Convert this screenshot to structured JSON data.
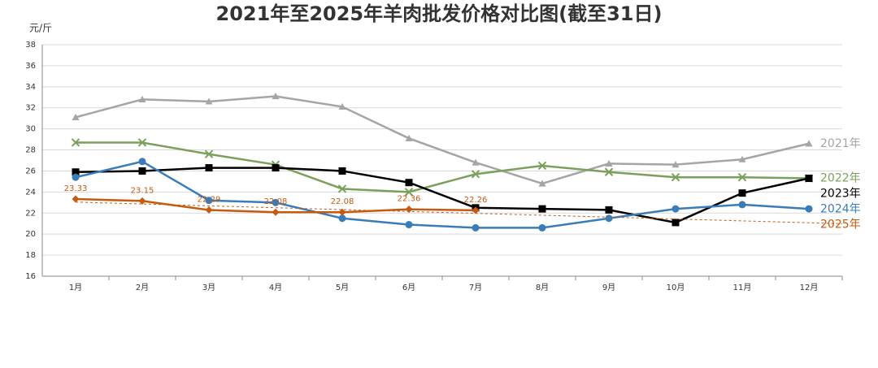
{
  "chart_data": {
    "type": "line",
    "title": "2021年至2025年羊肉批发价格对比图(截至31日)",
    "y_label": "元/斤",
    "categories": [
      "1月",
      "2月",
      "3月",
      "4月",
      "5月",
      "6月",
      "7月",
      "8月",
      "9月",
      "10月",
      "11月",
      "12月"
    ],
    "ylim": [
      16,
      38
    ],
    "yticks": [
      16,
      18,
      20,
      22,
      24,
      26,
      28,
      30,
      32,
      34,
      36,
      38
    ],
    "grid": true,
    "series": [
      {
        "name": "2021年",
        "color": "#a5a5a5",
        "marker": "triangle",
        "values": [
          31.1,
          32.8,
          32.6,
          33.1,
          32.1,
          29.1,
          26.8,
          24.8,
          26.7,
          26.6,
          27.1,
          28.6
        ]
      },
      {
        "name": "2022年",
        "color": "#7ba05b",
        "marker": "x",
        "values": [
          28.7,
          28.7,
          27.6,
          26.6,
          24.3,
          24.0,
          25.7,
          26.5,
          25.9,
          25.4,
          25.4,
          25.3
        ]
      },
      {
        "name": "2023年",
        "color": "#000000",
        "marker": "square",
        "values": [
          25.9,
          26.0,
          26.3,
          26.3,
          26.0,
          24.9,
          22.5,
          22.4,
          22.3,
          21.1,
          23.9,
          25.3
        ]
      },
      {
        "name": "2024年",
        "color": "#3a7cb8",
        "marker": "circle",
        "values": [
          25.4,
          26.9,
          23.2,
          23.0,
          21.5,
          20.9,
          20.6,
          20.6,
          21.5,
          22.4,
          22.8,
          22.4
        ]
      },
      {
        "name": "2025年",
        "color": "#c55a11",
        "marker": "diamond",
        "data_labels": true,
        "trendline": true,
        "values": [
          23.33,
          23.15,
          22.29,
          22.08,
          22.08,
          22.36,
          22.26,
          null,
          null,
          null,
          null,
          null
        ]
      }
    ]
  }
}
